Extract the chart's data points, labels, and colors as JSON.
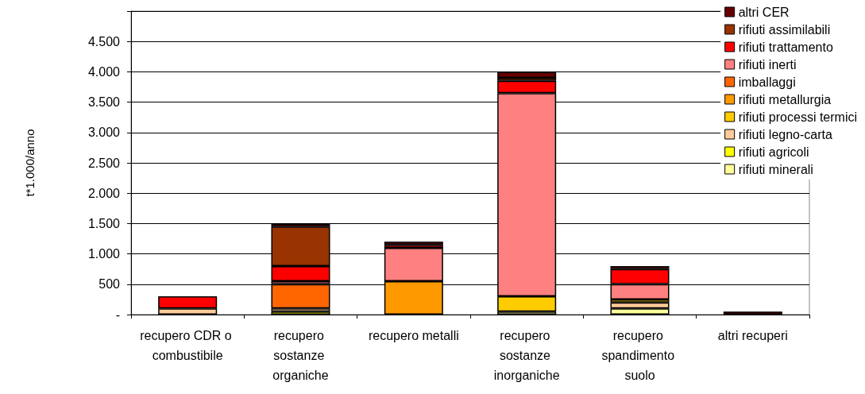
{
  "chart_data": {
    "type": "bar",
    "stacked": true,
    "ylabel": "t*1.000/anno",
    "categories": [
      "recupero CDR o combustibile",
      "recupero sostanze organiche",
      "recupero metalli",
      "recupero sostanze inorganiche",
      "recupero spandimento suolo",
      "altri recuperi"
    ],
    "series": [
      {
        "name": "rifiuti minerali",
        "color": "#ffff99",
        "values": [
          null,
          null,
          null,
          50,
          100,
          null
        ]
      },
      {
        "name": "rifiuti agricoli",
        "color": "#ffff00",
        "values": [
          null,
          50,
          null,
          null,
          null,
          null
        ]
      },
      {
        "name": "rifiuti legno-carta",
        "color": "#ffcc99",
        "values": [
          100,
          50,
          null,
          null,
          100,
          null
        ]
      },
      {
        "name": "rifiuti processi termici",
        "color": "#ffcc00",
        "values": [
          null,
          null,
          null,
          250,
          50,
          null
        ]
      },
      {
        "name": "rifiuti metallurgia",
        "color": "#ff9900",
        "values": [
          null,
          null,
          550,
          null,
          null,
          null
        ]
      },
      {
        "name": "imballaggi",
        "color": "#ff6600",
        "values": [
          null,
          400,
          null,
          null,
          null,
          null
        ]
      },
      {
        "name": "rifiuti inerti",
        "color": "#ff8080",
        "values": [
          null,
          50,
          550,
          3350,
          250,
          null
        ]
      },
      {
        "name": "rifiuti trattamento",
        "color": "#ff0000",
        "values": [
          200,
          250,
          50,
          200,
          250,
          null
        ]
      },
      {
        "name": "rifiuti assimilabili",
        "color": "#993300",
        "values": [
          null,
          650,
          null,
          50,
          null,
          null
        ]
      },
      {
        "name": "altri CER",
        "color": "#660000",
        "values": [
          null,
          50,
          50,
          100,
          50,
          50
        ]
      }
    ],
    "ylim": [
      0,
      5000
    ],
    "yticks": [
      {
        "value": 0,
        "label": "-"
      },
      500,
      {
        "value": 1000,
        "label": "1.000"
      },
      {
        "value": 1500,
        "label": "1.500"
      },
      {
        "value": 2000,
        "label": "2.000"
      },
      {
        "value": 2500,
        "label": "2.500"
      },
      {
        "value": 3000,
        "label": "3.000"
      },
      {
        "value": 3500,
        "label": "3.500"
      },
      {
        "value": 4000,
        "label": "4.000"
      },
      {
        "value": 4500,
        "label": "4.500"
      },
      {
        "value": 5000,
        "label": null
      }
    ],
    "grid": "y",
    "legend": "top right"
  }
}
